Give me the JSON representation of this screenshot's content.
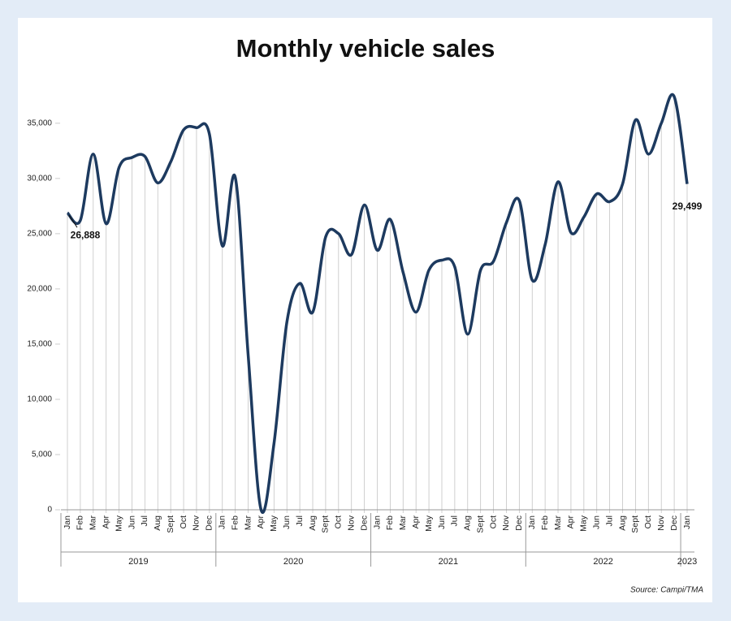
{
  "chart_data": {
    "type": "line",
    "title": "Monthly vehicle sales",
    "source": "Source: Campi/TMA",
    "categories": [
      "Jan",
      "Feb",
      "Mar",
      "Apr",
      "May",
      "Jun",
      "Jul",
      "Aug",
      "Sept",
      "Oct",
      "Nov",
      "Dec",
      "Jan",
      "Feb",
      "Mar",
      "Apr",
      "May",
      "Jun",
      "Jul",
      "Aug",
      "Sept",
      "Oct",
      "Nov",
      "Dec",
      "Jan",
      "Feb",
      "Mar",
      "Apr",
      "May",
      "Jun",
      "Jul",
      "Aug",
      "Sept",
      "Oct",
      "Nov",
      "Dec",
      "Jan",
      "Feb",
      "Mar",
      "Apr",
      "May",
      "Jun",
      "Jul",
      "Aug",
      "Sept",
      "Oct",
      "Nov",
      "Dec",
      "Jan"
    ],
    "years": [
      "2019",
      "2020",
      "2021",
      "2022",
      "2023"
    ],
    "series": [
      {
        "name": "Monthly vehicle sales",
        "color": "#1d3a5f",
        "values": [
          26888,
          26200,
          32200,
          25900,
          31000,
          31900,
          32000,
          29600,
          31500,
          34400,
          34600,
          34000,
          23900,
          30100,
          14000,
          0,
          6000,
          17000,
          20500,
          17900,
          24700,
          25000,
          23100,
          27600,
          23500,
          26300,
          21500,
          17900,
          21700,
          22600,
          22000,
          15900,
          21700,
          22500,
          26000,
          28000,
          20800,
          24000,
          29700,
          25100,
          26500,
          28600,
          27900,
          29500,
          35300,
          32200,
          35000,
          37400,
          29499
        ],
        "value_labels": [
          "26,888",
          null,
          null,
          null,
          null,
          null,
          null,
          null,
          null,
          null,
          null,
          null,
          null,
          null,
          null,
          null,
          null,
          null,
          null,
          null,
          null,
          null,
          null,
          null,
          null,
          null,
          null,
          null,
          null,
          null,
          null,
          null,
          null,
          null,
          null,
          null,
          null,
          null,
          null,
          null,
          null,
          null,
          null,
          null,
          null,
          null,
          null,
          null,
          "29,499"
        ]
      }
    ],
    "ylim": [
      0,
      38000
    ],
    "yticks": [
      0,
      {
        "value": 5000,
        "label": "5,000"
      },
      {
        "value": 10000,
        "label": "10,000"
      },
      {
        "value": 15000,
        "label": "15,000"
      },
      {
        "value": 20000,
        "label": "20,000"
      },
      {
        "value": 25000,
        "label": "25,000"
      },
      {
        "value": 30000,
        "label": "30,000"
      },
      {
        "value": 35000,
        "label": "35,000"
      }
    ]
  }
}
